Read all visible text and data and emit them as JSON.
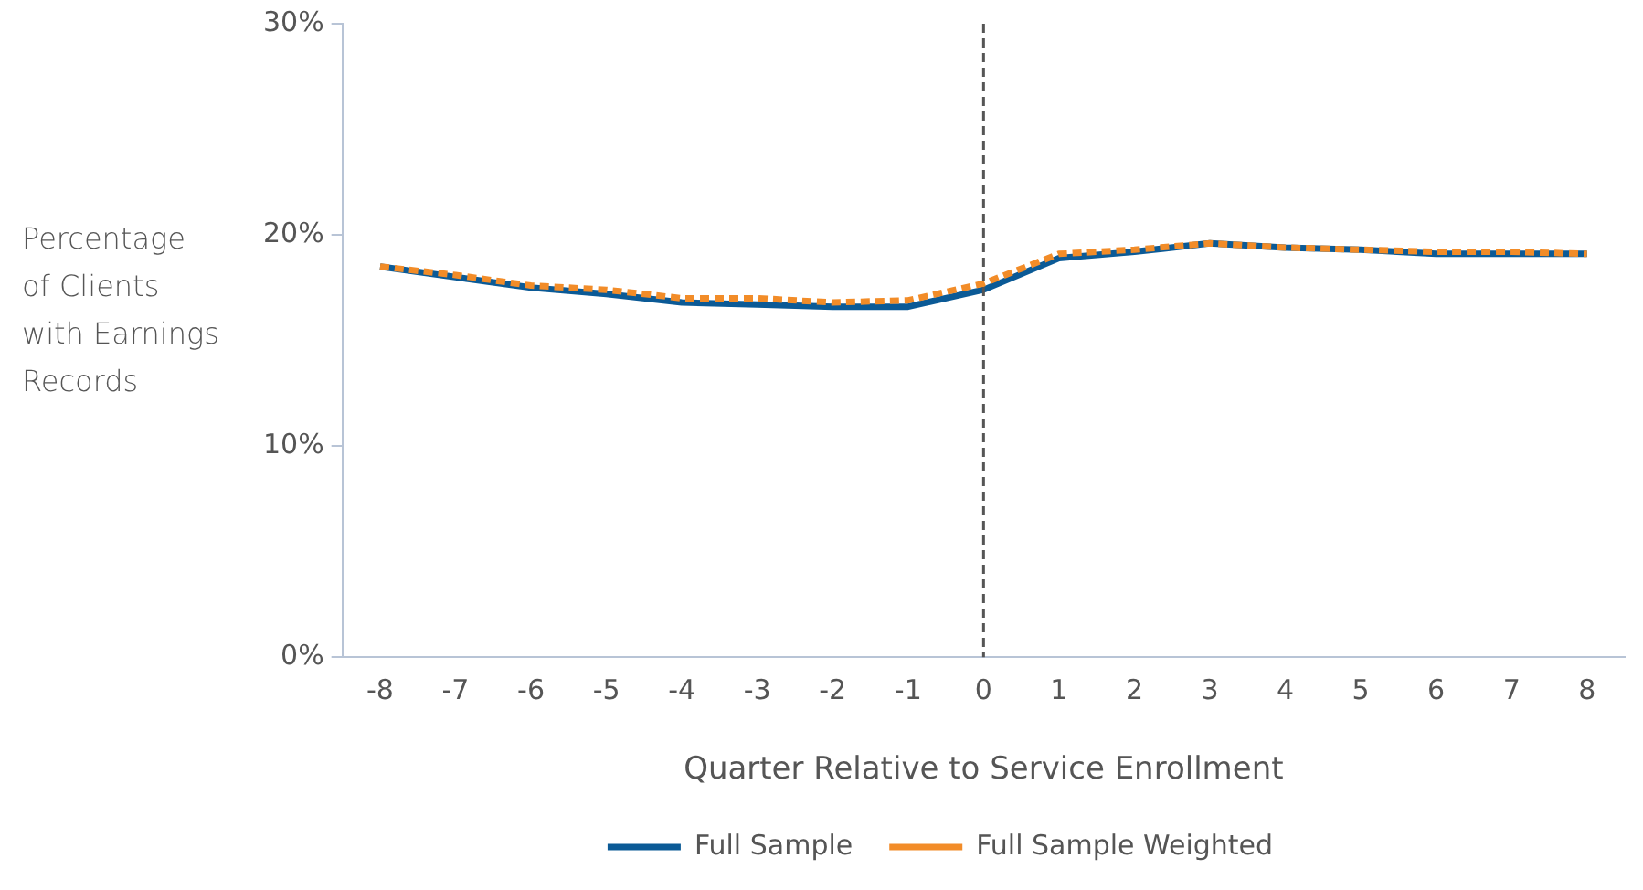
{
  "chart_data": {
    "type": "line",
    "xlabel": "Quarter Relative to Service Enrollment",
    "ylabel": "Percentage of Clients with Earnings Records",
    "categories": [
      "-8",
      "-7",
      "-6",
      "-5",
      "-4",
      "-3",
      "-2",
      "-1",
      "0",
      "1",
      "2",
      "3",
      "4",
      "5",
      "6",
      "7",
      "8"
    ],
    "series": [
      {
        "name": "Full Sample",
        "color": "#0b5a96",
        "line_style": "solid",
        "values": [
          18.5,
          18.0,
          17.5,
          17.2,
          16.8,
          16.7,
          16.6,
          16.6,
          17.4,
          18.9,
          19.2,
          19.6,
          19.4,
          19.3,
          19.1,
          19.1,
          19.1
        ]
      },
      {
        "name": "Full Sample Weighted",
        "color": "#f28c28",
        "line_style": "dashed",
        "values": [
          18.5,
          18.1,
          17.6,
          17.4,
          17.0,
          17.0,
          16.8,
          16.9,
          17.7,
          19.1,
          19.3,
          19.6,
          19.4,
          19.3,
          19.2,
          19.2,
          19.1
        ]
      }
    ],
    "ylim": [
      0,
      30
    ],
    "yticks": [
      {
        "value": 0,
        "label": "0%"
      },
      {
        "value": 10,
        "label": "10%"
      },
      {
        "value": 20,
        "label": "20%"
      },
      {
        "value": 30,
        "label": "30%"
      }
    ],
    "ref_lines": [
      {
        "axis": "x",
        "value": "0",
        "color": "#555555",
        "line_style": "dashed"
      }
    ],
    "grid": false,
    "legend": "bottom",
    "marker": "none"
  }
}
